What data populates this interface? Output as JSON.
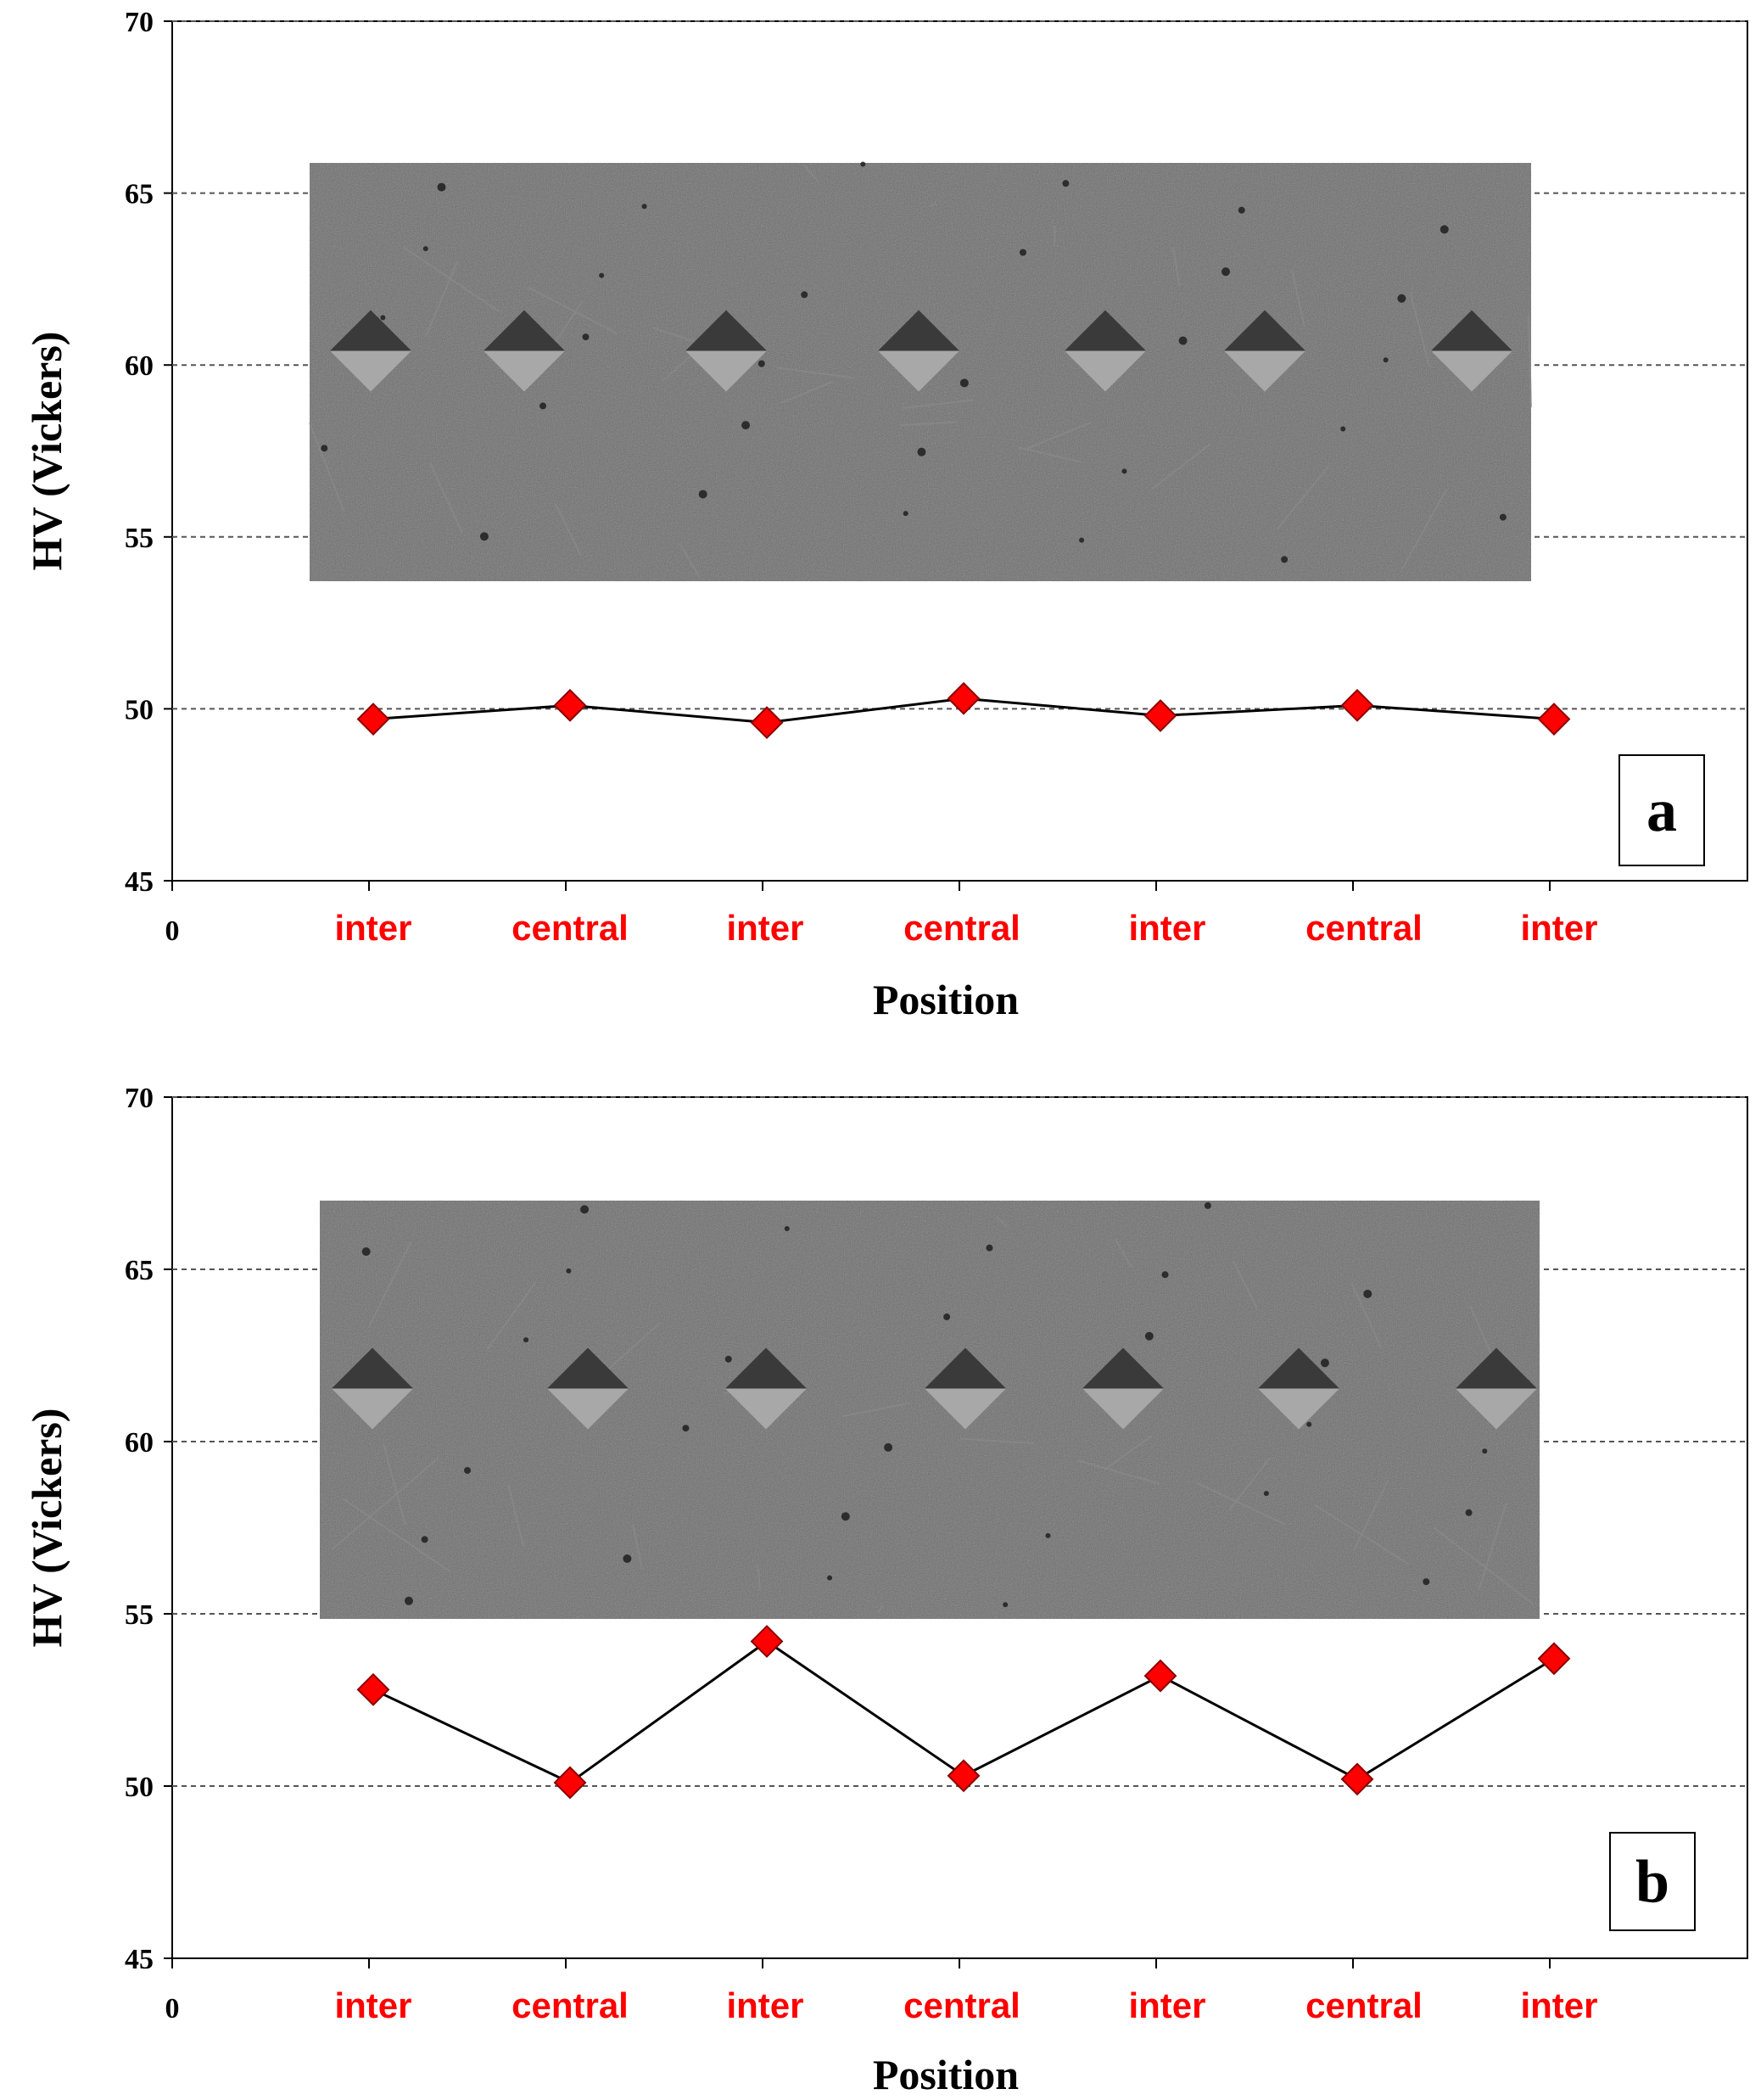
{
  "colors": {
    "marker": "#ff0000",
    "marker_stroke": "#8b0000",
    "line": "#000000",
    "tick_label": "#ff0000",
    "grid": "#555555",
    "micrograph_bg": "#6c6c6c"
  },
  "chart_data": [
    {
      "type": "line",
      "panel_label": "a",
      "xlabel": "Position",
      "ylabel": "HV (Vickers)",
      "ylim": [
        45,
        70
      ],
      "yticks": [
        "45",
        "50",
        "55",
        "60",
        "65",
        "70"
      ],
      "x_origin_label": "0",
      "categories": [
        "inter",
        "central",
        "inter",
        "central",
        "inter",
        "central",
        "inter"
      ],
      "values": [
        49.7,
        50.1,
        49.6,
        50.3,
        49.8,
        50.1,
        49.7
      ],
      "grid": "horizontal dashed",
      "inset": "micrograph with Vickers indentations"
    },
    {
      "type": "line",
      "panel_label": "b",
      "xlabel": "Position",
      "ylabel": "HV (Vickers)",
      "ylim": [
        45,
        70
      ],
      "yticks": [
        "45",
        "50",
        "55",
        "60",
        "65",
        "70"
      ],
      "x_origin_label": "0",
      "categories": [
        "inter",
        "central",
        "inter",
        "central",
        "inter",
        "central",
        "inter"
      ],
      "values": [
        52.8,
        50.1,
        54.2,
        50.3,
        53.2,
        50.2,
        53.7
      ],
      "grid": "horizontal dashed",
      "inset": "micrograph with Vickers indentations"
    }
  ]
}
